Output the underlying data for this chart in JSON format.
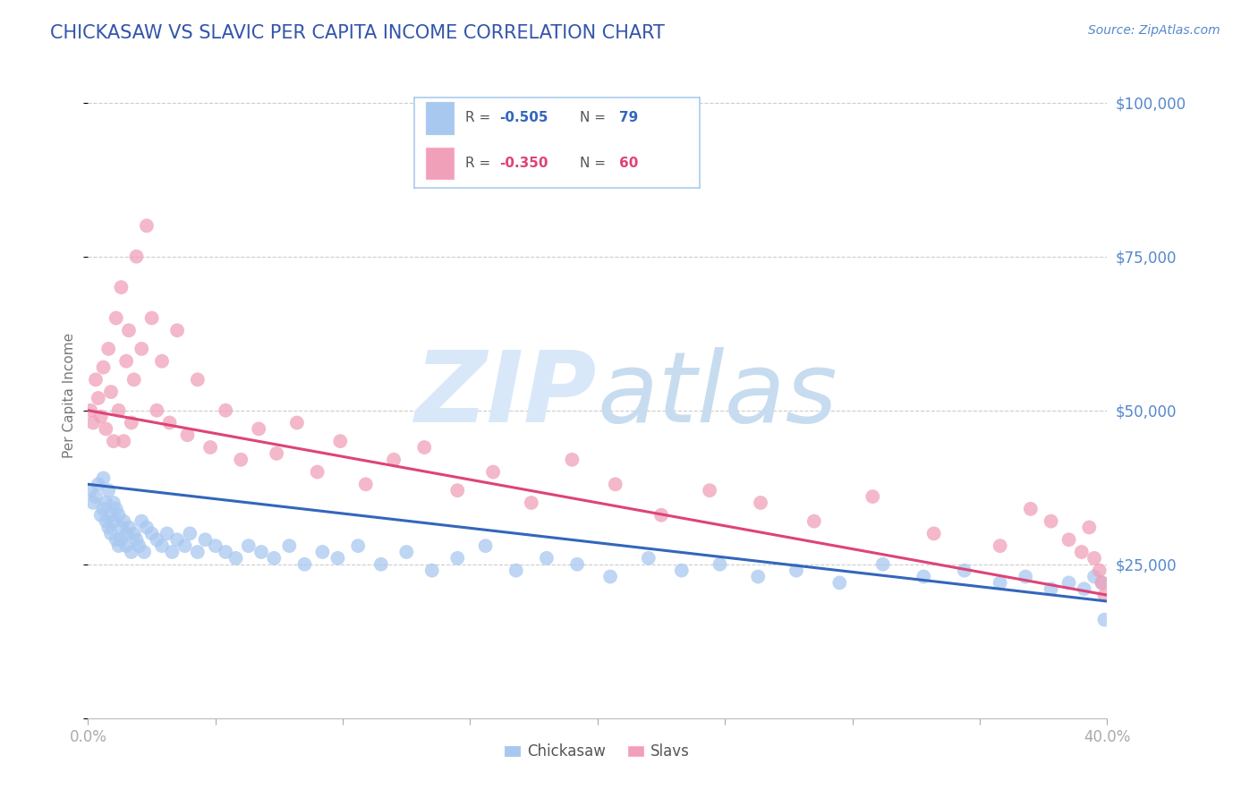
{
  "title": "CHICKASAW VS SLAVIC PER CAPITA INCOME CORRELATION CHART",
  "source_text": "Source: ZipAtlas.com",
  "ylabel": "Per Capita Income",
  "xlim": [
    0.0,
    0.4
  ],
  "ylim": [
    0,
    105000
  ],
  "yticks": [
    0,
    25000,
    50000,
    75000,
    100000
  ],
  "xticks": [
    0.0,
    0.05,
    0.1,
    0.15,
    0.2,
    0.25,
    0.3,
    0.35,
    0.4
  ],
  "xtick_labels_sparse": {
    "0.0": "0.0%",
    "0.4": "40.0%"
  },
  "ytick_labels": [
    "",
    "$25,000",
    "$50,000",
    "$75,000",
    "$100,000"
  ],
  "legend_bottom_labels": [
    "Chickasaw",
    "Slavs"
  ],
  "chickasaw_color": "#A8C8F0",
  "slavic_color": "#F0A0B8",
  "blue_line_color": "#3366BB",
  "pink_line_color": "#DD4477",
  "title_color": "#3355AA",
  "axis_color": "#5588CC",
  "watermark_zip_color": "#D8E8F8",
  "watermark_atlas_color": "#C8DCF0",
  "grid_color": "#CCCCCC",
  "background_color": "#FFFFFF",
  "legend_border_color": "#AACCEE",
  "chickasaw_x": [
    0.001,
    0.002,
    0.003,
    0.004,
    0.005,
    0.006,
    0.006,
    0.007,
    0.007,
    0.008,
    0.008,
    0.009,
    0.009,
    0.01,
    0.01,
    0.011,
    0.011,
    0.012,
    0.012,
    0.013,
    0.013,
    0.014,
    0.015,
    0.015,
    0.016,
    0.017,
    0.018,
    0.019,
    0.02,
    0.021,
    0.022,
    0.023,
    0.025,
    0.027,
    0.029,
    0.031,
    0.033,
    0.035,
    0.038,
    0.04,
    0.043,
    0.046,
    0.05,
    0.054,
    0.058,
    0.063,
    0.068,
    0.073,
    0.079,
    0.085,
    0.092,
    0.098,
    0.106,
    0.115,
    0.125,
    0.135,
    0.145,
    0.156,
    0.168,
    0.18,
    0.192,
    0.205,
    0.22,
    0.233,
    0.248,
    0.263,
    0.278,
    0.295,
    0.312,
    0.328,
    0.344,
    0.358,
    0.368,
    0.378,
    0.385,
    0.391,
    0.395,
    0.398,
    0.399
  ],
  "chickasaw_y": [
    37000,
    35000,
    36000,
    38000,
    33000,
    39000,
    34000,
    32000,
    35000,
    37000,
    31000,
    33000,
    30000,
    35000,
    32000,
    29000,
    34000,
    28000,
    33000,
    31000,
    29000,
    32000,
    30000,
    28000,
    31000,
    27000,
    30000,
    29000,
    28000,
    32000,
    27000,
    31000,
    30000,
    29000,
    28000,
    30000,
    27000,
    29000,
    28000,
    30000,
    27000,
    29000,
    28000,
    27000,
    26000,
    28000,
    27000,
    26000,
    28000,
    25000,
    27000,
    26000,
    28000,
    25000,
    27000,
    24000,
    26000,
    28000,
    24000,
    26000,
    25000,
    23000,
    26000,
    24000,
    25000,
    23000,
    24000,
    22000,
    25000,
    23000,
    24000,
    22000,
    23000,
    21000,
    22000,
    21000,
    23000,
    22000,
    16000
  ],
  "slavic_x": [
    0.001,
    0.002,
    0.003,
    0.004,
    0.005,
    0.006,
    0.007,
    0.008,
    0.009,
    0.01,
    0.011,
    0.012,
    0.013,
    0.014,
    0.015,
    0.016,
    0.017,
    0.018,
    0.019,
    0.021,
    0.023,
    0.025,
    0.027,
    0.029,
    0.032,
    0.035,
    0.039,
    0.043,
    0.048,
    0.054,
    0.06,
    0.067,
    0.074,
    0.082,
    0.09,
    0.099,
    0.109,
    0.12,
    0.132,
    0.145,
    0.159,
    0.174,
    0.19,
    0.207,
    0.225,
    0.244,
    0.264,
    0.285,
    0.308,
    0.332,
    0.358,
    0.37,
    0.378,
    0.385,
    0.39,
    0.393,
    0.395,
    0.397,
    0.398,
    0.399
  ],
  "slavic_y": [
    50000,
    48000,
    55000,
    52000,
    49000,
    57000,
    47000,
    60000,
    53000,
    45000,
    65000,
    50000,
    70000,
    45000,
    58000,
    63000,
    48000,
    55000,
    75000,
    60000,
    80000,
    65000,
    50000,
    58000,
    48000,
    63000,
    46000,
    55000,
    44000,
    50000,
    42000,
    47000,
    43000,
    48000,
    40000,
    45000,
    38000,
    42000,
    44000,
    37000,
    40000,
    35000,
    42000,
    38000,
    33000,
    37000,
    35000,
    32000,
    36000,
    30000,
    28000,
    34000,
    32000,
    29000,
    27000,
    31000,
    26000,
    24000,
    22000,
    20000
  ],
  "blue_line_x": [
    0.0,
    0.4
  ],
  "blue_line_y": [
    38000,
    19000
  ],
  "pink_line_x": [
    0.0,
    0.4
  ],
  "pink_line_y": [
    50000,
    20000
  ]
}
